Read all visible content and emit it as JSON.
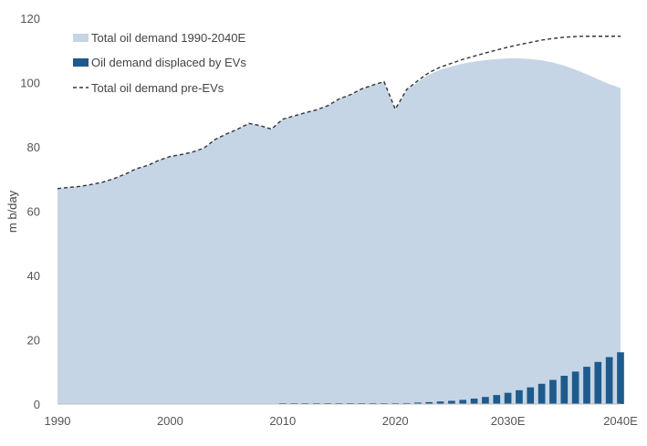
{
  "chart_data": {
    "type": "area",
    "title": "",
    "xlabel": "",
    "ylabel": "m b/day",
    "ylim": [
      0,
      120
    ],
    "xlim": [
      1990,
      2040
    ],
    "grid": false,
    "legend_position": "top-left",
    "x_tick_labels": [
      "1990",
      "2000",
      "2010",
      "2020",
      "2030E",
      "2040E"
    ],
    "y_tick_labels": [
      "0",
      "20",
      "40",
      "60",
      "80",
      "100",
      "120"
    ],
    "series": [
      {
        "name": "Total oil demand 1990-2040E",
        "type": "area",
        "color": "#c5d5e5",
        "x": [
          1990,
          1991,
          1992,
          1993,
          1994,
          1995,
          1996,
          1997,
          1998,
          1999,
          2000,
          2001,
          2002,
          2003,
          2004,
          2005,
          2006,
          2007,
          2008,
          2009,
          2010,
          2011,
          2012,
          2013,
          2014,
          2015,
          2016,
          2017,
          2018,
          2019,
          2020,
          2021,
          2022,
          2023,
          2024,
          2025,
          2026,
          2027,
          2028,
          2029,
          2030,
          2031,
          2032,
          2033,
          2034,
          2035,
          2036,
          2037,
          2038,
          2039,
          2040
        ],
        "values": [
          67.0,
          67.4,
          67.7,
          68.3,
          69.0,
          70.1,
          71.5,
          73.2,
          74.2,
          75.8,
          77.0,
          77.6,
          78.4,
          79.6,
          82.3,
          84.0,
          85.5,
          87.3,
          86.6,
          85.5,
          88.6,
          89.6,
          90.6,
          91.5,
          92.8,
          94.9,
          96.2,
          98.0,
          99.2,
          100.3,
          91.5,
          97.5,
          100.2,
          102.5,
          104.0,
          105.0,
          105.9,
          106.5,
          107.0,
          107.3,
          107.5,
          107.5,
          107.3,
          106.9,
          106.2,
          105.3,
          104.0,
          102.6,
          101.0,
          99.5,
          98.3
        ]
      },
      {
        "name": "Oil demand displaced by EVs",
        "type": "bar",
        "color": "#1f5a8d",
        "x": [
          2010,
          2011,
          2012,
          2013,
          2014,
          2015,
          2016,
          2017,
          2018,
          2019,
          2020,
          2021,
          2022,
          2023,
          2024,
          2025,
          2026,
          2027,
          2028,
          2029,
          2030,
          2031,
          2032,
          2033,
          2034,
          2035,
          2036,
          2037,
          2038,
          2039,
          2040
        ],
        "values": [
          0.05,
          0.05,
          0.05,
          0.05,
          0.05,
          0.05,
          0.1,
          0.1,
          0.1,
          0.15,
          0.2,
          0.3,
          0.45,
          0.6,
          0.8,
          1.0,
          1.3,
          1.7,
          2.2,
          2.8,
          3.5,
          4.3,
          5.2,
          6.3,
          7.5,
          8.8,
          10.1,
          11.6,
          13.1,
          14.6,
          16.1
        ]
      },
      {
        "name": "Total oil demand pre-EVs",
        "type": "line",
        "style": "dashed",
        "color": "#333333",
        "x": [
          1990,
          1991,
          1992,
          1993,
          1994,
          1995,
          1996,
          1997,
          1998,
          1999,
          2000,
          2001,
          2002,
          2003,
          2004,
          2005,
          2006,
          2007,
          2008,
          2009,
          2010,
          2011,
          2012,
          2013,
          2014,
          2015,
          2016,
          2017,
          2018,
          2019,
          2020,
          2021,
          2022,
          2023,
          2024,
          2025,
          2026,
          2027,
          2028,
          2029,
          2030,
          2031,
          2032,
          2033,
          2034,
          2035,
          2036,
          2037,
          2038,
          2039,
          2040
        ],
        "values": [
          67.0,
          67.4,
          67.7,
          68.3,
          69.0,
          70.1,
          71.5,
          73.2,
          74.2,
          75.8,
          77.0,
          77.6,
          78.4,
          79.6,
          82.3,
          84.0,
          85.5,
          87.3,
          86.6,
          85.5,
          88.6,
          89.6,
          90.6,
          91.5,
          92.8,
          94.9,
          96.2,
          98.0,
          99.2,
          100.3,
          91.7,
          97.8,
          100.6,
          103.1,
          104.8,
          106.0,
          107.2,
          108.2,
          109.2,
          110.1,
          111.0,
          111.8,
          112.5,
          113.2,
          113.7,
          114.1,
          114.3,
          114.4,
          114.4,
          114.4,
          114.4
        ]
      }
    ]
  }
}
